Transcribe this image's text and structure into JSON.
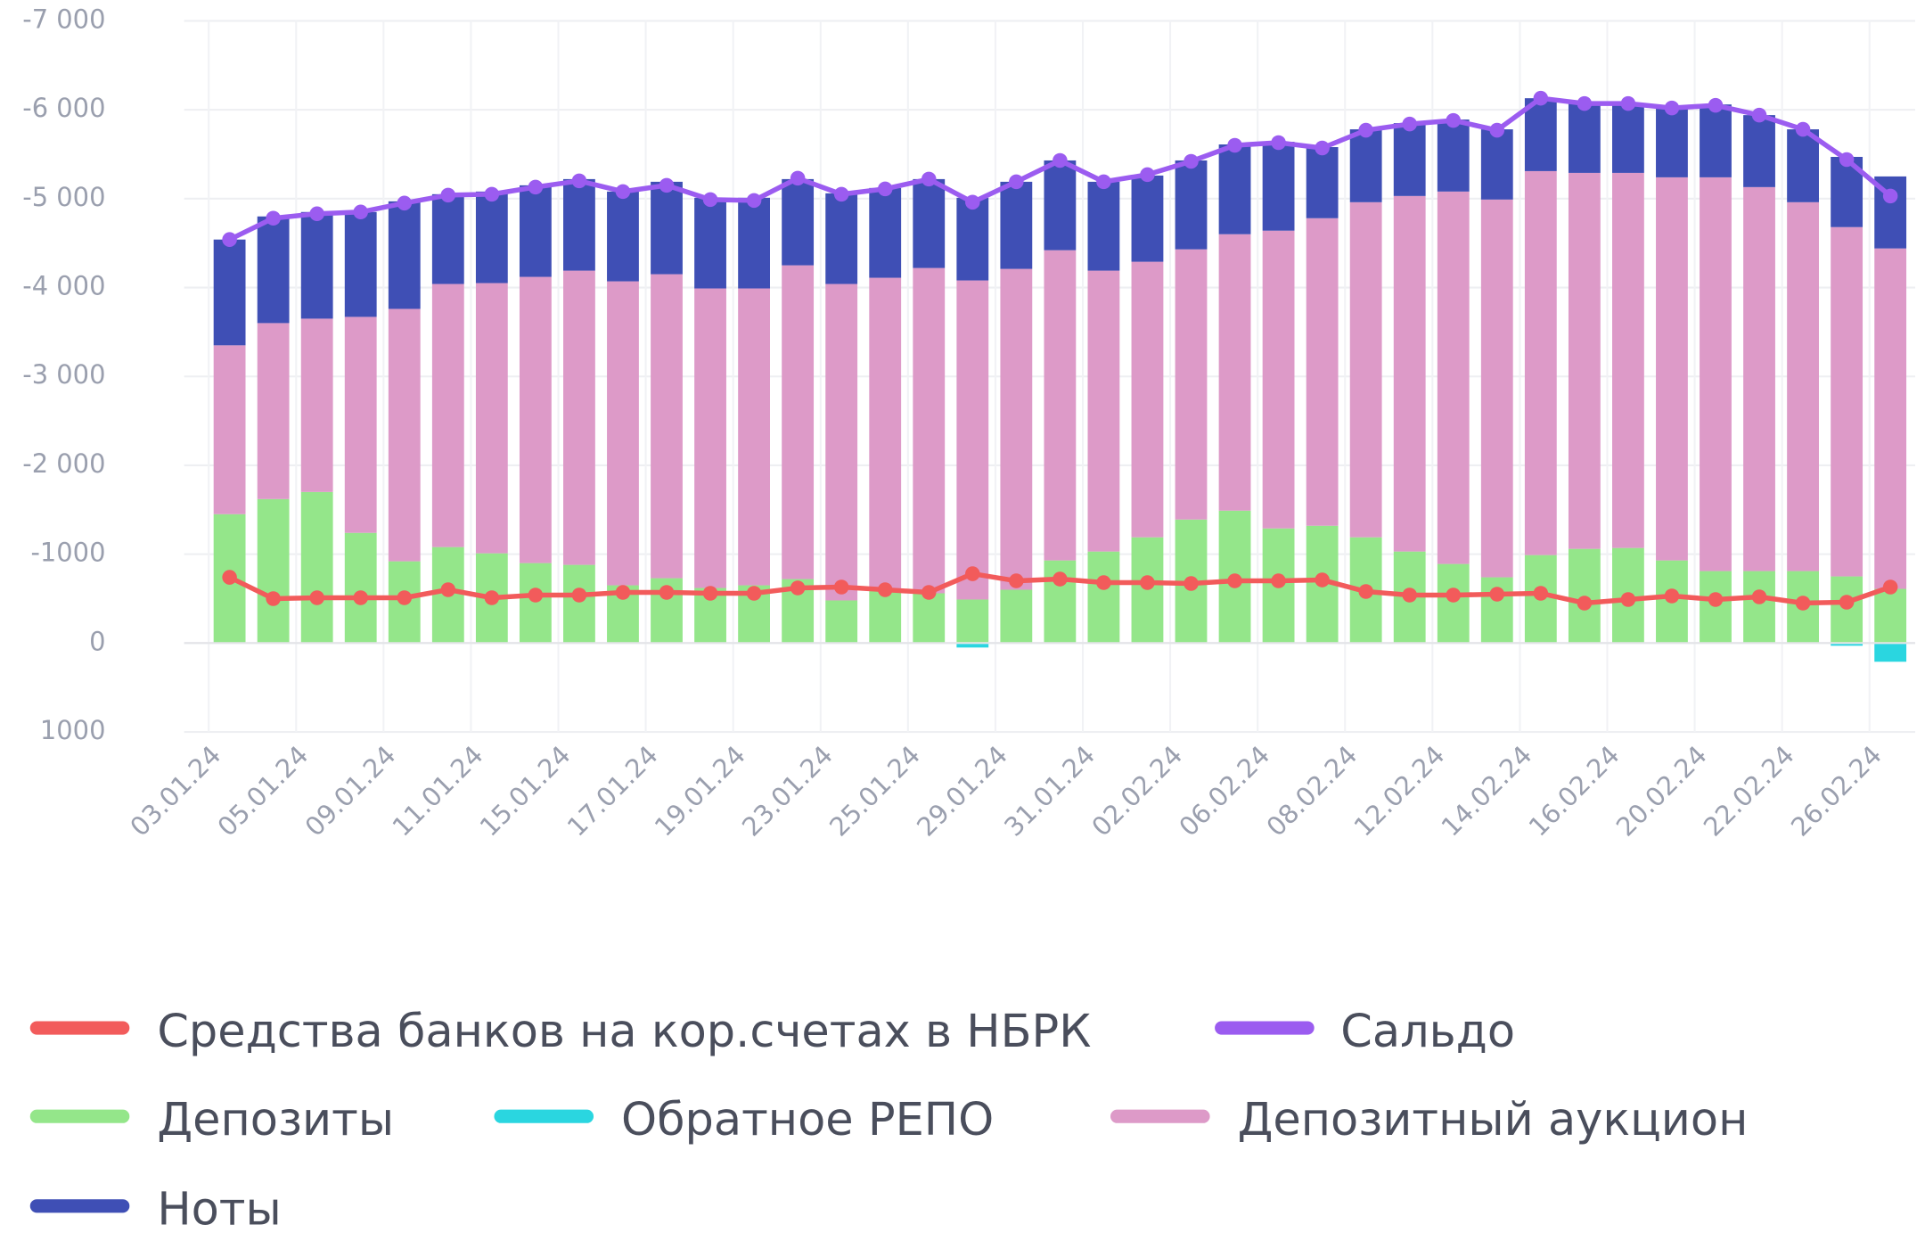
{
  "chart_data": {
    "type": "bar",
    "stacked": true,
    "categories": [
      "03.01.24",
      null,
      "05.01.24",
      null,
      "09.01.24",
      null,
      "11.01.24",
      null,
      "15.01.24",
      null,
      "17.01.24",
      null,
      "19.01.24",
      null,
      "23.01.24",
      null,
      "25.01.24",
      null,
      "29.01.24",
      null,
      "31.01.24",
      null,
      "02.02.24",
      null,
      "06.02.24",
      null,
      "08.02.24",
      null,
      "12.02.24",
      null,
      "14.02.24",
      null,
      "16.02.24",
      null,
      "20.02.24",
      null,
      "22.02.24",
      null,
      "26.02.24"
    ],
    "ylim": [
      -7000,
      1000
    ],
    "yticks": [
      {
        "value": -7000,
        "label": "-7 000"
      },
      {
        "value": -6000,
        "label": "-6 000"
      },
      {
        "value": -5000,
        "label": "-5 000"
      },
      {
        "value": -4000,
        "label": "-4 000"
      },
      {
        "value": -3000,
        "label": "-3 000"
      },
      {
        "value": -2000,
        "label": "-2 000"
      },
      -1000,
      0,
      1000
    ],
    "inverted": true,
    "series": [
      {
        "name": "Средства банков на кор.счетах в НБРК",
        "type": "line",
        "color": "#f25b5b",
        "values": [
          -740,
          -500,
          -510,
          -510,
          -510,
          -600,
          -510,
          -540,
          -540,
          -570,
          -570,
          -560,
          -560,
          -620,
          -630,
          -600,
          -570,
          -780,
          -700,
          -720,
          -680,
          -680,
          -670,
          -700,
          -700,
          -710,
          -580,
          -540,
          -540,
          -550,
          -560,
          -450,
          -490,
          -530,
          -490,
          -520,
          -450,
          -460,
          -630
        ]
      },
      {
        "name": "Сальдо",
        "type": "line",
        "color": "#9b5cf0",
        "values": [
          -4540,
          -4780,
          -4830,
          -4850,
          -4950,
          -5040,
          -5050,
          -5130,
          -5200,
          -5080,
          -5150,
          -4990,
          -4980,
          -5230,
          -5050,
          -5110,
          -5220,
          -4960,
          -5190,
          -5430,
          -5190,
          -5270,
          -5420,
          -5600,
          -5630,
          -5570,
          -5770,
          -5840,
          -5880,
          -5770,
          -6130,
          -6070,
          -6070,
          -6020,
          -6050,
          -5940,
          -5780,
          -5440,
          -5030
        ]
      },
      {
        "name": "Депозиты",
        "type": "bar",
        "color": "#94e68a",
        "values": [
          -1450,
          -1620,
          -1700,
          -1240,
          -920,
          -1080,
          -1010,
          -900,
          -880,
          -650,
          -730,
          -620,
          -650,
          -720,
          -480,
          -600,
          -560,
          -490,
          -600,
          -930,
          -1030,
          -1190,
          -1390,
          -1490,
          -1290,
          -1320,
          -1190,
          -1030,
          -890,
          -740,
          -990,
          -1060,
          -1070,
          -930,
          -810,
          -810,
          -810,
          -750,
          -610
        ]
      },
      {
        "name": "Обратное РЕПО",
        "type": "bar",
        "color": "#2ad6e0",
        "values": [
          0,
          0,
          0,
          0,
          0,
          0,
          0,
          0,
          0,
          0,
          0,
          0,
          0,
          0,
          0,
          0,
          0,
          50,
          0,
          0,
          0,
          0,
          0,
          0,
          0,
          0,
          0,
          0,
          0,
          0,
          0,
          0,
          0,
          0,
          0,
          0,
          0,
          30,
          210
        ]
      },
      {
        "name": "Депозитный аукцион",
        "type": "bar",
        "color": "#dd9ac8",
        "values": [
          -1900,
          -1980,
          -1950,
          -2430,
          -2840,
          -2960,
          -3040,
          -3220,
          -3310,
          -3420,
          -3420,
          -3370,
          -3340,
          -3530,
          -3560,
          -3510,
          -3660,
          -3590,
          -3610,
          -3490,
          -3160,
          -3100,
          -3040,
          -3110,
          -3350,
          -3460,
          -3770,
          -4000,
          -4190,
          -4250,
          -4320,
          -4230,
          -4220,
          -4310,
          -4430,
          -4320,
          -4150,
          -3930,
          -3830
        ]
      },
      {
        "name": "Ноты",
        "type": "bar",
        "color": "#3f4fb5",
        "values": [
          -1190,
          -1200,
          -1200,
          -1180,
          -1210,
          -1010,
          -1030,
          -1030,
          -1030,
          -1010,
          -1040,
          -1020,
          -1020,
          -970,
          -1020,
          -1010,
          -1000,
          -930,
          -980,
          -1010,
          -1000,
          -970,
          -1000,
          -1010,
          -1000,
          -800,
          -820,
          -820,
          -810,
          -790,
          -820,
          -780,
          -780,
          -790,
          -820,
          -810,
          -820,
          -790,
          -810
        ]
      }
    ]
  }
}
